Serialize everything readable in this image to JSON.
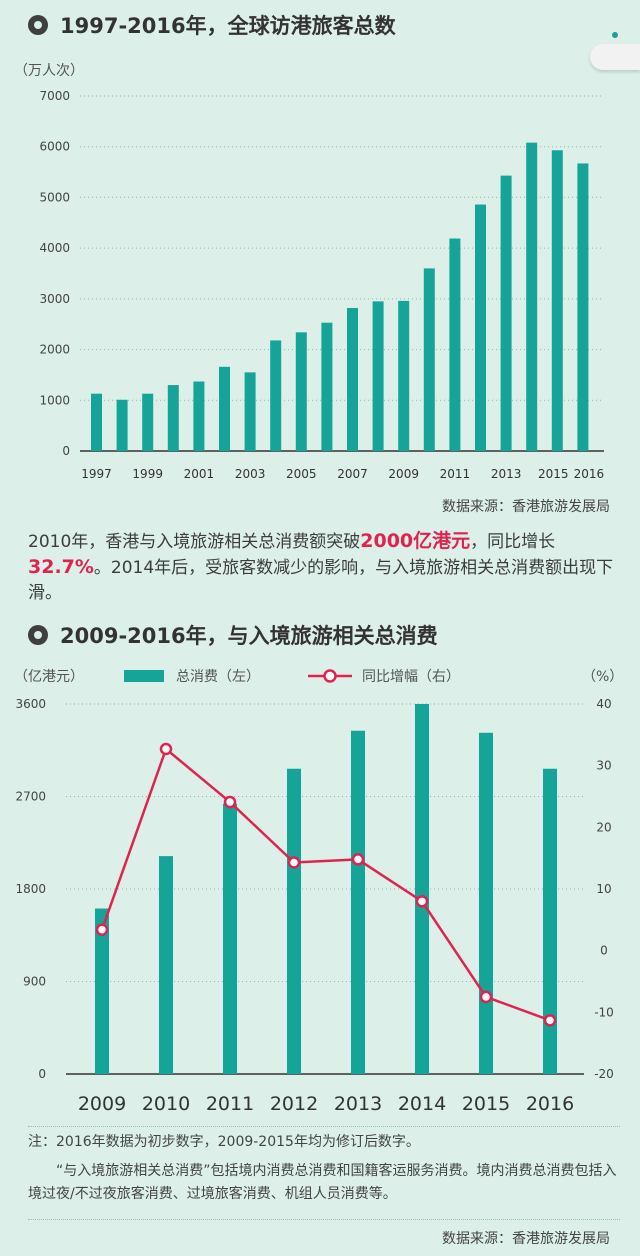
{
  "colors": {
    "bar": "#16a398",
    "line": "#e0234e",
    "background": "#dcefe9"
  },
  "section1": {
    "title": "1997-2016年，全球访港旅客总数",
    "unit": "（万人次）",
    "source": "数据来源：香港旅游发展局"
  },
  "paragraph": {
    "part1": "2010年，香港与入境旅游相关总消费额突破",
    "highlight1": "2000亿港元",
    "part2": "，同比增长",
    "highlight2": "32.7%",
    "part3": "。2014年后，受旅客数减少的影响，与入境旅游相关总消费额出现下滑。"
  },
  "section2": {
    "title": "2009-2016年，与入境旅游相关总消费",
    "unit_left": "（亿港元）",
    "unit_right": "（%）",
    "legend_bar": "总消费（左）",
    "legend_line": "同比增幅（右）"
  },
  "notes": {
    "line1": "注：2016年数据为初步数字，2009-2015年均为修订后数字。",
    "line2": "“与入境旅游相关总消费”包括境内消费总消费和国籍客运服务消费。境内消费总消费包括入境过夜/不过夜旅客消费、过境旅客消费、机组人员消费等。",
    "source": "数据来源：香港旅游发展局"
  },
  "chart_data": [
    {
      "type": "bar",
      "title": "1997-2016年，全球访港旅客总数",
      "ylabel": "万人次",
      "ylim": [
        0,
        7000
      ],
      "yticks": [
        0,
        1000,
        2000,
        3000,
        4000,
        5000,
        6000,
        7000
      ],
      "grid": true,
      "categories": [
        "1997",
        "1998",
        "1999",
        "2000",
        "2001",
        "2002",
        "2003",
        "2004",
        "2005",
        "2006",
        "2007",
        "2008",
        "2009",
        "2010",
        "2011",
        "2012",
        "2013",
        "2014",
        "2015",
        "2016"
      ],
      "tick_labels": [
        "1997",
        "",
        "1999",
        "",
        "2001",
        "",
        "2003",
        "",
        "2005",
        "",
        "2007",
        "",
        "2009",
        "",
        "2011",
        "",
        "2013",
        "",
        "2015",
        "2016"
      ],
      "values": [
        1130,
        1010,
        1130,
        1300,
        1370,
        1660,
        1550,
        2180,
        2340,
        2530,
        2820,
        2950,
        2960,
        3600,
        4190,
        4860,
        5430,
        6080,
        5930,
        5670
      ]
    },
    {
      "type": "bar+line",
      "title": "2009-2016年，与入境旅游相关总消费",
      "categories": [
        "2009",
        "2010",
        "2011",
        "2012",
        "2013",
        "2014",
        "2015",
        "2016"
      ],
      "series": [
        {
          "name": "总消费（左）",
          "type": "bar",
          "axis": "left",
          "values": [
            1610,
            2120,
            2630,
            2970,
            3340,
            3600,
            3320,
            2970
          ]
        },
        {
          "name": "同比增幅（右）",
          "type": "line",
          "axis": "right",
          "values": [
            3.4,
            32.7,
            24.1,
            14.3,
            14.8,
            8.0,
            -7.5,
            -11.3
          ]
        }
      ],
      "ylim_left": [
        0,
        3600
      ],
      "yticks_left": [
        0,
        900,
        1800,
        2700,
        3600
      ],
      "ylim_right": [
        -20,
        40
      ],
      "yticks_right": [
        -20,
        -10,
        0,
        10,
        20,
        30,
        40
      ],
      "ylabel_left": "亿港元",
      "ylabel_right": "%"
    }
  ]
}
